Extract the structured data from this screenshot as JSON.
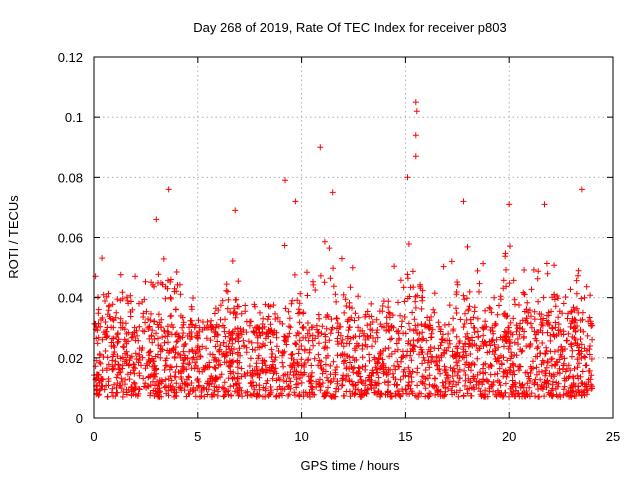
{
  "chart_data": {
    "type": "scatter",
    "title": "Day 268 of 2019, Rate Of TEC Index for receiver p803",
    "xlabel": "GPS time / hours",
    "ylabel": "ROTI / TECUs",
    "xlim": [
      0,
      25
    ],
    "ylim": [
      0,
      0.12
    ],
    "xticks": [
      0,
      5,
      10,
      15,
      20,
      25
    ],
    "xtick_labels": [
      "0",
      "5",
      "10",
      "15",
      "20",
      "25"
    ],
    "yticks": [
      0,
      0.02,
      0.04,
      0.06,
      0.08,
      0.1,
      0.12
    ],
    "ytick_labels": [
      "0",
      "0.02",
      "0.04",
      "0.06",
      "0.08",
      "0.1",
      "0.12"
    ],
    "grid": true,
    "marker": "+",
    "color": "#ff0000",
    "series": [
      {
        "name": "ROTI",
        "x_range": [
          0,
          24
        ],
        "typical_y_range": [
          0.007,
          0.03
        ],
        "highlights": [
          {
            "x": 3.0,
            "y": 0.066
          },
          {
            "x": 3.6,
            "y": 0.076
          },
          {
            "x": 6.8,
            "y": 0.069
          },
          {
            "x": 9.2,
            "y": 0.079
          },
          {
            "x": 9.7,
            "y": 0.072
          },
          {
            "x": 10.9,
            "y": 0.09
          },
          {
            "x": 11.5,
            "y": 0.075
          },
          {
            "x": 15.1,
            "y": 0.08
          },
          {
            "x": 15.5,
            "y": 0.105
          },
          {
            "x": 15.55,
            "y": 0.102
          },
          {
            "x": 15.5,
            "y": 0.094
          },
          {
            "x": 15.5,
            "y": 0.087
          },
          {
            "x": 17.8,
            "y": 0.072
          },
          {
            "x": 20.0,
            "y": 0.071
          },
          {
            "x": 21.7,
            "y": 0.071
          },
          {
            "x": 23.5,
            "y": 0.076
          }
        ]
      }
    ]
  }
}
